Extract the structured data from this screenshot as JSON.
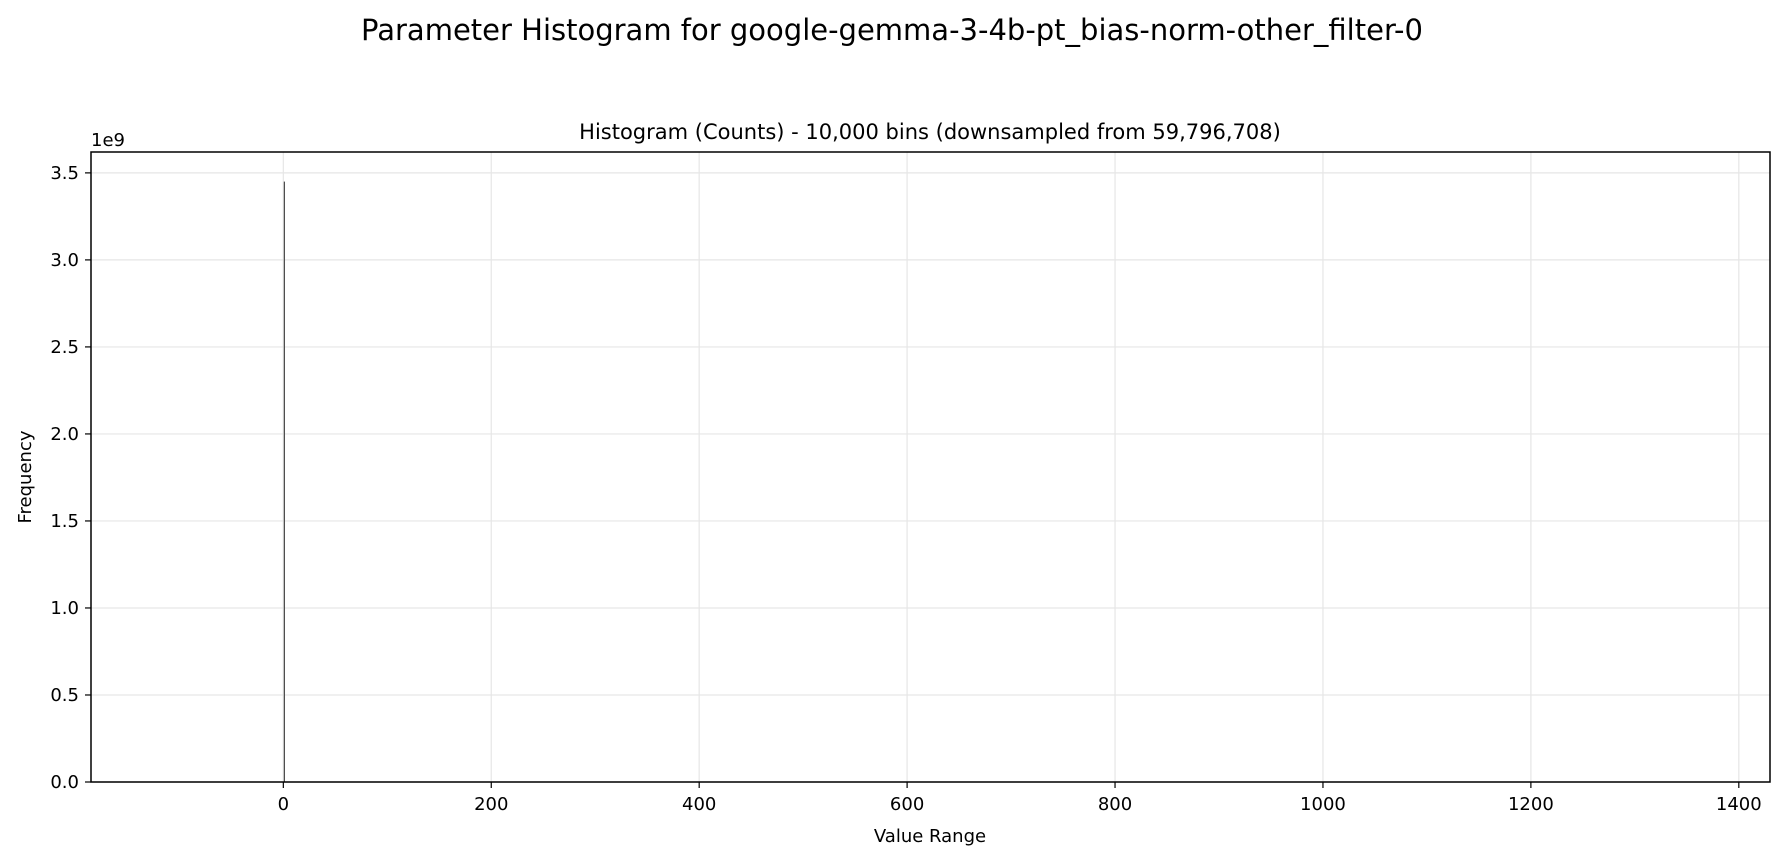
{
  "figure": {
    "suptitle": "Parameter Histogram for google-gemma-3-4b-pt_bias-norm-other_filter-0"
  },
  "chart_data": {
    "type": "bar",
    "title": "Histogram (Counts) - 10,000 bins (downsampled from 59,796,708)",
    "xlabel": "Value Range",
    "ylabel": "Frequency",
    "y_offset_label": "1e9",
    "xlim": [
      -185,
      1430
    ],
    "ylim": [
      0,
      3.62
    ],
    "y_unit_multiplier": 1000000000,
    "xticks": [
      0,
      200,
      400,
      600,
      800,
      1000,
      1200,
      1400
    ],
    "xtick_labels": [
      "0",
      "200",
      "400",
      "600",
      "800",
      "1000",
      "1200",
      "1400"
    ],
    "yticks": [
      0.0,
      0.5,
      1.0,
      1.5,
      2.0,
      2.5,
      3.0,
      3.5
    ],
    "ytick_labels": [
      "0.0",
      "0.5",
      "1.0",
      "1.5",
      "2.0",
      "2.5",
      "3.0",
      "3.5"
    ],
    "grid": true,
    "legend": "none",
    "bar_color": "#4a4a4a",
    "bars": [
      {
        "x": 1.0,
        "value": 3.45
      }
    ]
  }
}
